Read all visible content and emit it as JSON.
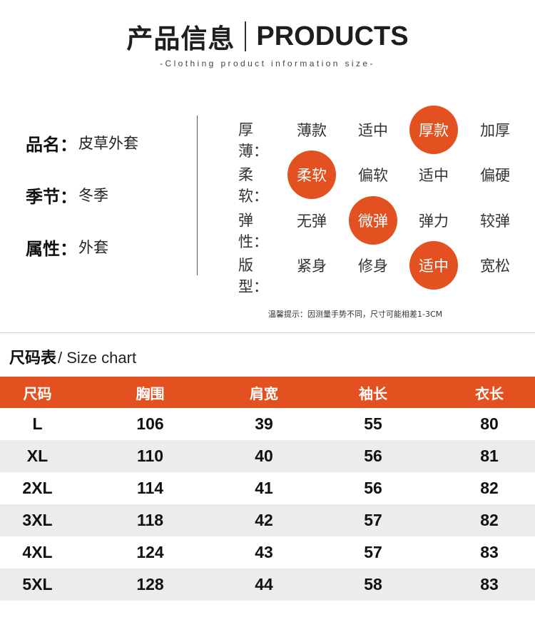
{
  "header": {
    "title_cn": "产品信息",
    "title_en": "PRODUCTS",
    "subtitle": "-Clothing product information size-"
  },
  "attributes": [
    {
      "key": "品名：",
      "value": "皮草外套"
    },
    {
      "key": "季节：",
      "value": "冬季"
    },
    {
      "key": "属性：",
      "value": "外套"
    }
  ],
  "properties": [
    {
      "label": "厚薄：",
      "options": [
        "薄款",
        "适中",
        "厚款",
        "加厚"
      ],
      "selected": 2
    },
    {
      "label": "柔软：",
      "options": [
        "柔软",
        "偏软",
        "适中",
        "偏硬"
      ],
      "selected": 0
    },
    {
      "label": "弹性：",
      "options": [
        "无弹",
        "微弹",
        "弹力",
        "较弹"
      ],
      "selected": 1
    },
    {
      "label": "版型：",
      "options": [
        "紧身",
        "修身",
        "适中",
        "宽松"
      ],
      "selected": 2
    }
  ],
  "note": "温馨提示：因测量手势不同，尺寸可能相差1-3CM",
  "size_chart": {
    "title_cn": "尺码表",
    "title_en": "/ Size chart",
    "headers": [
      "尺码",
      "胸围",
      "肩宽",
      "袖长",
      "衣长"
    ],
    "rows": [
      [
        "L",
        "106",
        "39",
        "55",
        "80"
      ],
      [
        "XL",
        "110",
        "40",
        "56",
        "81"
      ],
      [
        "2XL",
        "114",
        "41",
        "56",
        "82"
      ],
      [
        "3XL",
        "118",
        "42",
        "57",
        "82"
      ],
      [
        "4XL",
        "124",
        "43",
        "57",
        "83"
      ],
      [
        "5XL",
        "128",
        "44",
        "58",
        "83"
      ]
    ]
  },
  "colors": {
    "accent": "#e2511f",
    "row_alt": "#ececec"
  }
}
